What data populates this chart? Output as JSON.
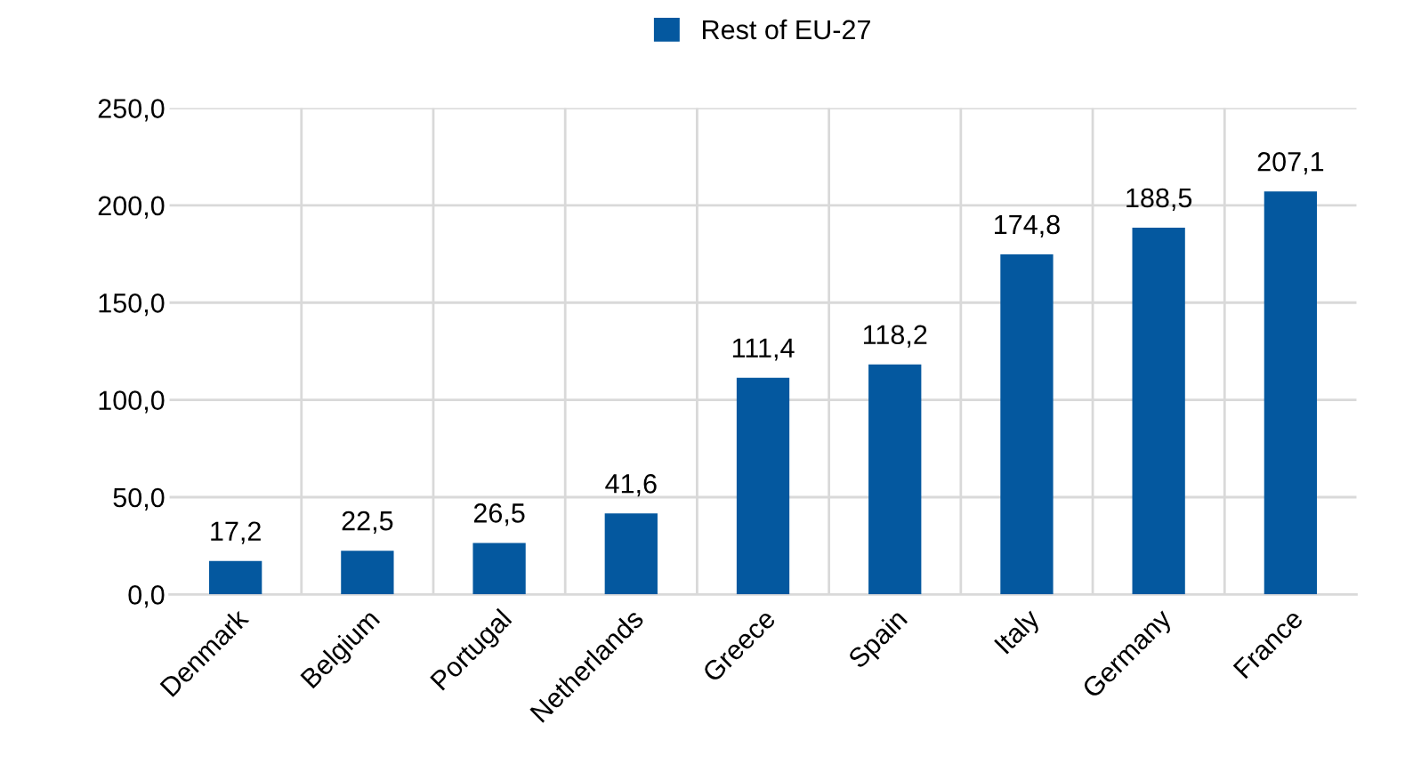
{
  "chart_data": {
    "type": "bar",
    "categories": [
      "Denmark",
      "Belgium",
      "Portugal",
      "Netherlands",
      "Greece",
      "Spain",
      "Italy",
      "Germany",
      "France"
    ],
    "series": [
      {
        "name": "Rest of EU-27",
        "color": "#04589f",
        "values": [
          17.2,
          22.5,
          26.5,
          41.6,
          111.4,
          118.2,
          174.8,
          188.5,
          207.1
        ],
        "value_labels": [
          "17,2",
          "22,5",
          "26,5",
          "41,6",
          "111,4",
          "118,2",
          "174,8",
          "188,5",
          "207,1"
        ]
      }
    ],
    "ylim": [
      0,
      250
    ],
    "yticks": [
      {
        "value": 0,
        "label": "0,0"
      },
      {
        "value": 50,
        "label": "50,0"
      },
      {
        "value": 100,
        "label": "100,0"
      },
      {
        "value": 150,
        "label": "150,0"
      },
      {
        "value": 200,
        "label": "200,0"
      },
      {
        "value": 250,
        "label": "250,0"
      }
    ],
    "grid": true,
    "legend": "top"
  }
}
